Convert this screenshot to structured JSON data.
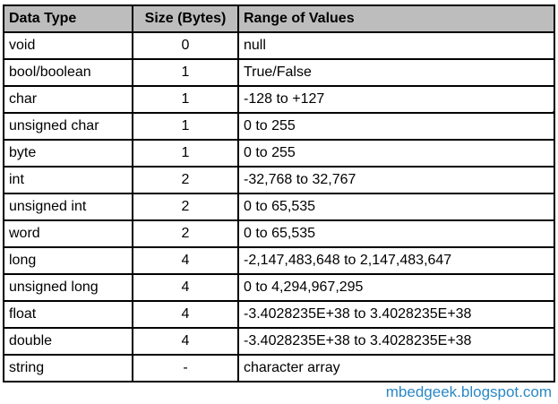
{
  "table": {
    "columns": [
      {
        "label": "Data Type",
        "align": "left"
      },
      {
        "label": "Size (Bytes)",
        "align": "center"
      },
      {
        "label": "Range of Values",
        "align": "left"
      }
    ],
    "rows": [
      [
        "void",
        "0",
        "null"
      ],
      [
        "bool/boolean",
        "1",
        "True/False"
      ],
      [
        "char",
        "1",
        "-128 to +127"
      ],
      [
        "unsigned char",
        "1",
        "0 to 255"
      ],
      [
        "byte",
        "1",
        "0 to 255"
      ],
      [
        "int",
        "2",
        "-32,768 to 32,767"
      ],
      [
        "unsigned int",
        "2",
        "0 to 65,535"
      ],
      [
        "word",
        "2",
        "0 to 65,535"
      ],
      [
        "long",
        "4",
        "-2,147,483,648 to 2,147,483,647"
      ],
      [
        "unsigned long",
        "4",
        "0 to 4,294,967,295"
      ],
      [
        "float",
        "4",
        "-3.4028235E+38 to 3.4028235E+38"
      ],
      [
        "double",
        "4",
        "-3.4028235E+38 to 3.4028235E+38"
      ],
      [
        "string",
        "-",
        "character array"
      ]
    ],
    "selection": {
      "row_index": 2,
      "col_index": 2,
      "selected_value": "-128 to +127"
    }
  },
  "footer": {
    "link": "mbedgeek.blogspot.com"
  },
  "colors": {
    "header_bg": "#BDBDBD",
    "selection_green": "#217346",
    "link_blue": "#2A88C5"
  }
}
